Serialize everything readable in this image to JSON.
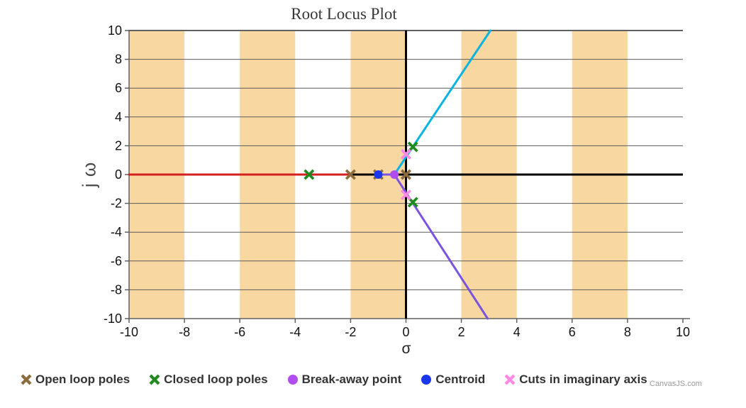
{
  "chart_data": {
    "type": "line",
    "title": "Root Locus Plot",
    "xlabel": "σ",
    "ylabel": "j ω",
    "xlim": [
      -10,
      10
    ],
    "ylim": [
      -10,
      10
    ],
    "x_ticks": [
      -10,
      -8,
      -6,
      -4,
      -2,
      0,
      2,
      4,
      6,
      8,
      10
    ],
    "y_ticks": [
      -10,
      -8,
      -6,
      -4,
      -2,
      0,
      2,
      4,
      6,
      8,
      10
    ],
    "grid": true,
    "legend_position": "bottom",
    "interlaced_x_bands": [
      [
        -10,
        -8
      ],
      [
        -6,
        -4
      ],
      [
        -2,
        0
      ],
      [
        2,
        4
      ],
      [
        6,
        8
      ]
    ],
    "zero_axis_lines": {
      "horizontal_at": 0,
      "vertical_at": 0,
      "color": "#000000",
      "width": 3
    },
    "branches": [
      {
        "name": "real-axis-branch",
        "color": "#d41f1f",
        "points": [
          [
            -10,
            0
          ],
          [
            -2,
            0
          ]
        ]
      },
      {
        "name": "upper-complex-branch",
        "color": "#0ab4e0",
        "points": [
          [
            -0.42,
            0
          ],
          [
            3.05,
            10
          ]
        ]
      },
      {
        "name": "lower-complex-branch",
        "color": "#7a54df",
        "points": [
          [
            -1,
            0
          ],
          [
            -0.42,
            0
          ],
          [
            2.95,
            -10
          ]
        ]
      }
    ],
    "markers": [
      {
        "name": "open-loop-poles",
        "shape": "cross",
        "color": "#8c6b3c",
        "points": [
          [
            0,
            0
          ],
          [
            -1,
            0
          ],
          [
            -2,
            0
          ]
        ]
      },
      {
        "name": "closed-loop-poles",
        "shape": "cross",
        "color": "#1f8b1f",
        "points": [
          [
            -3.5,
            0
          ],
          [
            0.25,
            1.92
          ],
          [
            0.25,
            -1.92
          ]
        ]
      },
      {
        "name": "break-away-point",
        "shape": "circle",
        "color": "#b04cf0",
        "points": [
          [
            -0.42,
            0
          ]
        ]
      },
      {
        "name": "centroid",
        "shape": "circle",
        "color": "#1937f0",
        "points": [
          [
            -1,
            0
          ]
        ]
      },
      {
        "name": "cuts-in-imaginary-axis",
        "shape": "cross",
        "color": "#ff8ae6",
        "points": [
          [
            0,
            1.41
          ],
          [
            0,
            -1.41
          ]
        ]
      }
    ],
    "colors": {
      "band": "#f8d7a1",
      "gridline": "#5c5c5c",
      "axis_line": "#606060",
      "tick_label": "#111111"
    }
  },
  "legend": {
    "items": [
      {
        "label": "Open loop poles",
        "shape": "cross",
        "color": "#8c6b3c"
      },
      {
        "label": "Closed loop poles",
        "shape": "cross",
        "color": "#1f8b1f"
      },
      {
        "label": "Break-away point",
        "shape": "circle",
        "color": "#b04cf0"
      },
      {
        "label": "Centroid",
        "shape": "circle",
        "color": "#1937f0"
      },
      {
        "label": "Cuts in imaginary axis",
        "shape": "cross",
        "color": "#ff8ae6"
      }
    ]
  },
  "watermark": {
    "label": "CanvasJS.com"
  }
}
